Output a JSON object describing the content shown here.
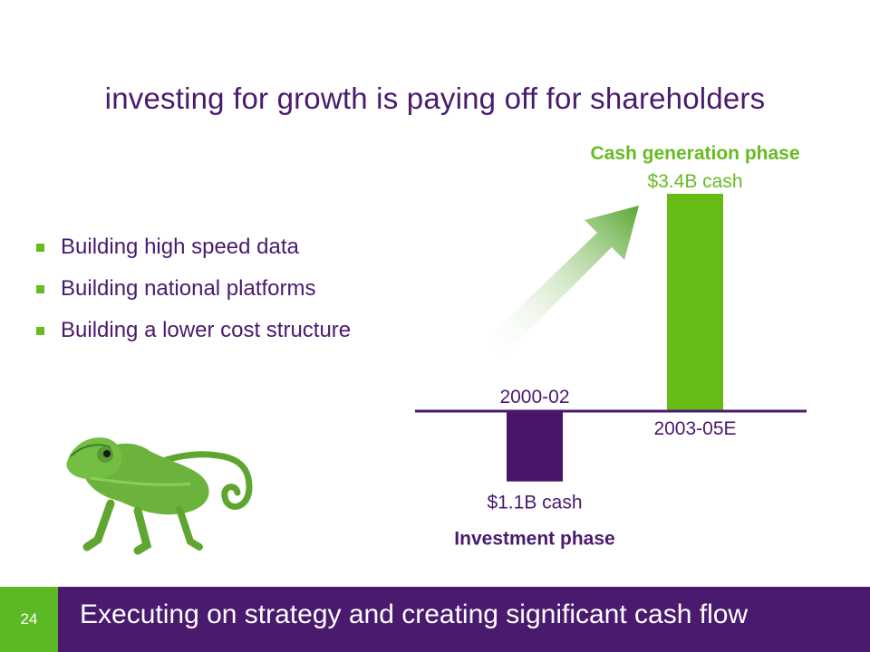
{
  "slide": {
    "title": "investing for growth is paying off for shareholders",
    "bullets": [
      "Building high speed data",
      "Building national platforms",
      "Building a lower cost structure"
    ],
    "page_number": "24",
    "footer": "Executing on strategy and creating significant cash flow",
    "colors": {
      "purple": "#4a1a6e",
      "green": "#66bb22",
      "footer_green": "#5cb823"
    }
  },
  "chart_data": {
    "type": "bar",
    "categories": [
      "2000-02",
      "2003-05E"
    ],
    "values": [
      -1.1,
      3.4
    ],
    "value_labels": [
      "$1.1B cash",
      "$3.4B cash"
    ],
    "phase_labels": [
      "Investment phase",
      "Cash generation phase"
    ],
    "bar_colors": [
      "#4a1568",
      "#66bb14"
    ],
    "ylim": [
      -1.1,
      3.4
    ]
  }
}
